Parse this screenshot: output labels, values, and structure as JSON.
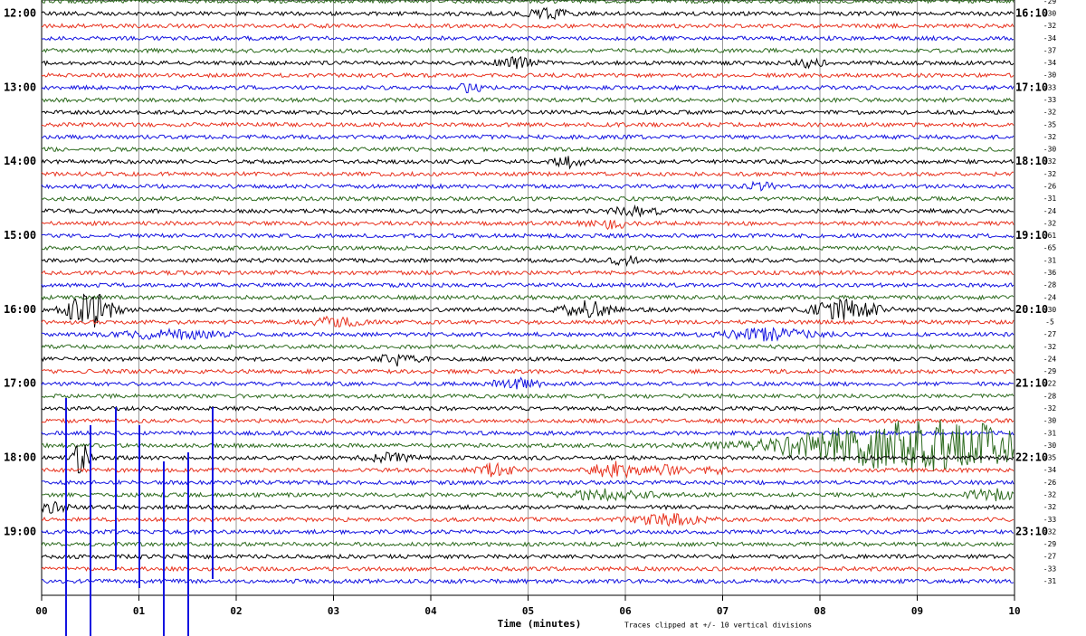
{
  "left_labels": [
    "12:00",
    "13:00",
    "14:00",
    "15:00",
    "16:00",
    "17:00",
    "18:00",
    "19:00"
  ],
  "right_labels": [
    "16:10",
    "17:10",
    "18:10",
    "19:10",
    "20:10",
    "21:10",
    "22:10",
    "23:10"
  ],
  "row_values": [
    "-29",
    "-30",
    "-32",
    "-34",
    "-37",
    "-34",
    "-30",
    "-33",
    "-33",
    "-32",
    "-35",
    "-32",
    "-30",
    "-32",
    "-32",
    "-26",
    "-31",
    "-24",
    "-32",
    "-61",
    "-65",
    "-31",
    "-36",
    "-28",
    "-24",
    "-30",
    "-5",
    "-27",
    "-32",
    "-24",
    "-29",
    "-22",
    "-28",
    "-32",
    "-30",
    "-31",
    "-30",
    "-35",
    "-34",
    "-26",
    "-32",
    "-32",
    "-33",
    "-32",
    "-29",
    "-27",
    "-33",
    "-31"
  ],
  "x_ticks": [
    "00",
    "01",
    "02",
    "03",
    "04",
    "05",
    "06",
    "07",
    "08",
    "09",
    "10"
  ],
  "x_label": "Time (minutes)",
  "note": "Traces clipped at +/- 10 vertical divisions"
}
